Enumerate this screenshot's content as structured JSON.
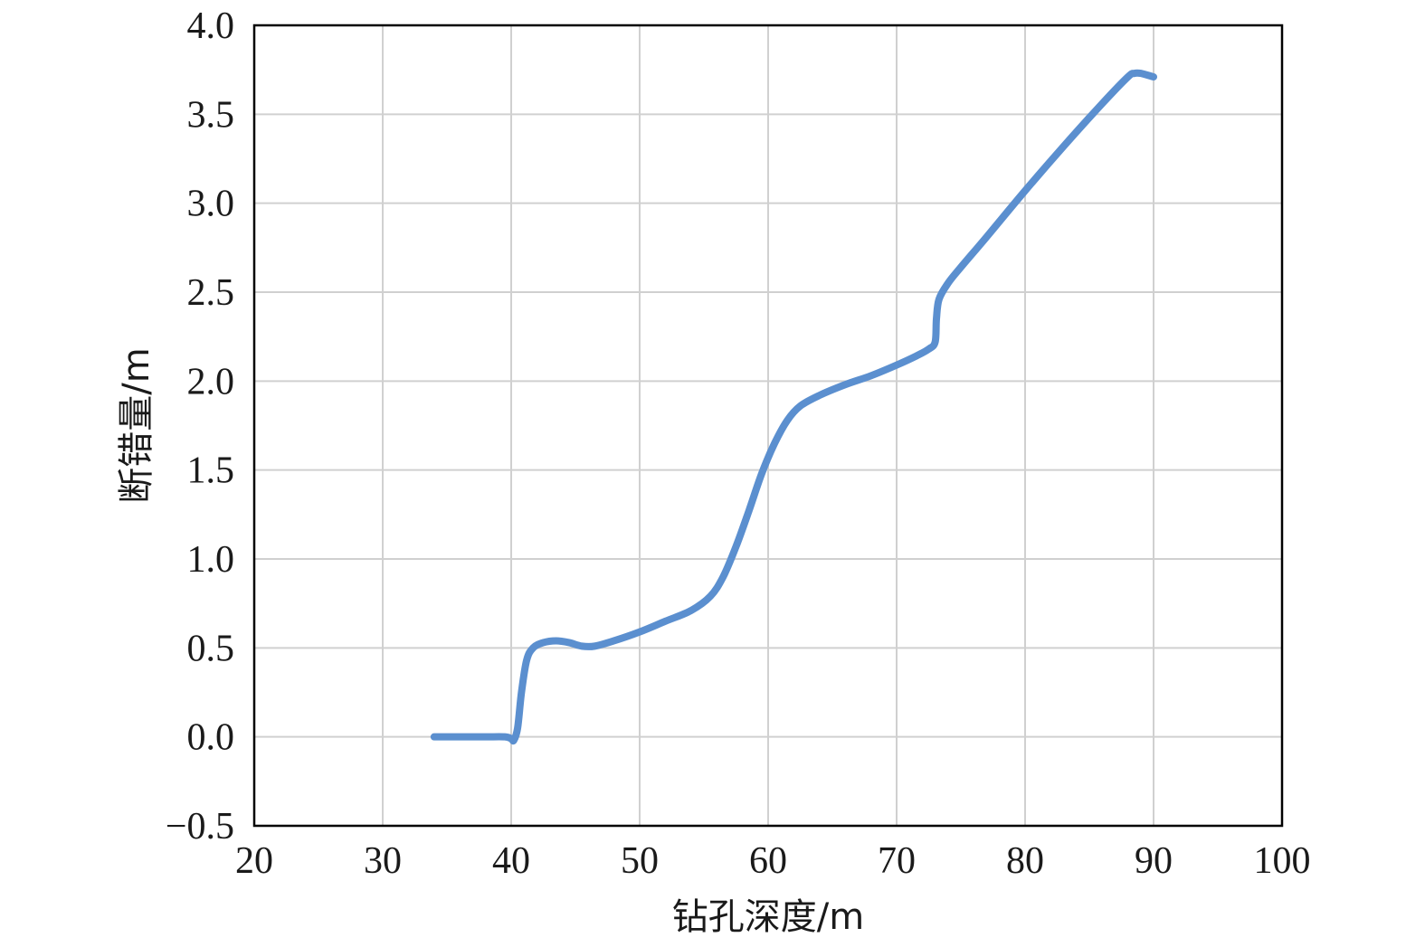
{
  "chart_data": {
    "type": "line",
    "title": "",
    "xlabel": "钻孔深度/m",
    "ylabel": "断错量/m",
    "xlim": [
      20,
      100
    ],
    "ylim": [
      -0.5,
      4.0
    ],
    "x_ticks": [
      20,
      30,
      40,
      50,
      60,
      70,
      80,
      90,
      100
    ],
    "x_tick_labels": [
      "20",
      "30",
      "40",
      "50",
      "60",
      "70",
      "80",
      "90",
      "100"
    ],
    "y_ticks": [
      -0.5,
      0.0,
      0.5,
      1.0,
      1.5,
      2.0,
      2.5,
      3.0,
      3.5,
      4.0
    ],
    "y_tick_labels": [
      "−0.5",
      "0.0",
      "0.5",
      "1.0",
      "1.5",
      "2.0",
      "2.5",
      "3.0",
      "3.5",
      "4.0"
    ],
    "grid": true,
    "legend": "none",
    "series": [
      {
        "color": "#5b8fcf",
        "points": [
          [
            34,
            0.0
          ],
          [
            36,
            0.0
          ],
          [
            38,
            0.0
          ],
          [
            39.5,
            0.0
          ],
          [
            40.0,
            -0.01
          ],
          [
            40.2,
            -0.02
          ],
          [
            40.5,
            0.05
          ],
          [
            40.8,
            0.25
          ],
          [
            41.2,
            0.43
          ],
          [
            41.7,
            0.5
          ],
          [
            42.5,
            0.53
          ],
          [
            43.5,
            0.54
          ],
          [
            44.5,
            0.53
          ],
          [
            45.5,
            0.51
          ],
          [
            46.5,
            0.51
          ],
          [
            48,
            0.54
          ],
          [
            50,
            0.59
          ],
          [
            52,
            0.65
          ],
          [
            54,
            0.71
          ],
          [
            55.5,
            0.79
          ],
          [
            56.5,
            0.9
          ],
          [
            57.5,
            1.07
          ],
          [
            58.5,
            1.27
          ],
          [
            59.5,
            1.48
          ],
          [
            60.5,
            1.65
          ],
          [
            61.5,
            1.78
          ],
          [
            62.5,
            1.86
          ],
          [
            64,
            1.92
          ],
          [
            66,
            1.98
          ],
          [
            68,
            2.03
          ],
          [
            70,
            2.09
          ],
          [
            71.5,
            2.14
          ],
          [
            72.5,
            2.18
          ],
          [
            73.0,
            2.22
          ],
          [
            73.1,
            2.35
          ],
          [
            73.3,
            2.46
          ],
          [
            74,
            2.55
          ],
          [
            75,
            2.64
          ],
          [
            77,
            2.81
          ],
          [
            80,
            3.07
          ],
          [
            83,
            3.32
          ],
          [
            86,
            3.56
          ],
          [
            88,
            3.71
          ],
          [
            88.5,
            3.73
          ],
          [
            89.0,
            3.73
          ],
          [
            90,
            3.71
          ]
        ]
      }
    ]
  }
}
